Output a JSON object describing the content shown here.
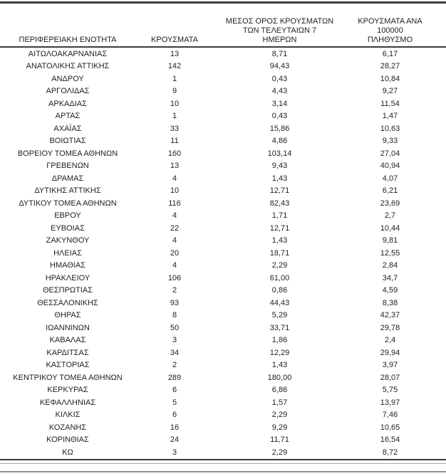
{
  "table": {
    "columns": [
      {
        "label": "ΠΕΡΙΦΕΡΕΙΑΚΗ ΕΝΟΤΗΤΑ"
      },
      {
        "label": "ΚΡΟΥΣΜΑΤΑ"
      },
      {
        "label": "ΜΕΣΟΣ ΟΡΟΣ ΚΡΟΥΣΜΑΤΩΝ\nΤΩΝ ΤΕΛΕΥΤΑΙΩΝ 7\nΗΜΕΡΩΝ"
      },
      {
        "label": "ΚΡΟΥΣΜΑΤΑ ΑΝΑ 100000\nΠΛΗΘΥΣΜΟ"
      }
    ],
    "rows": [
      {
        "region": "ΑΙΤΩΛΟΑΚΑΡΝΑΝΙΑΣ",
        "cases": "13",
        "avg7": "8,71",
        "per100k": "6,17"
      },
      {
        "region": "ΑΝΑΤΟΛΙΚΗΣ ΑΤΤΙΚΗΣ",
        "cases": "142",
        "avg7": "94,43",
        "per100k": "28,27"
      },
      {
        "region": "ΑΝΔΡΟΥ",
        "cases": "1",
        "avg7": "0,43",
        "per100k": "10,84"
      },
      {
        "region": "ΑΡΓΟΛΙΔΑΣ",
        "cases": "9",
        "avg7": "4,43",
        "per100k": "9,27"
      },
      {
        "region": "ΑΡΚΑΔΙΑΣ",
        "cases": "10",
        "avg7": "3,14",
        "per100k": "11,54"
      },
      {
        "region": "ΑΡΤΑΣ",
        "cases": "1",
        "avg7": "0,43",
        "per100k": "1,47"
      },
      {
        "region": "ΑΧΑΪΑΣ",
        "cases": "33",
        "avg7": "15,86",
        "per100k": "10,63"
      },
      {
        "region": "ΒΟΙΩΤΙΑΣ",
        "cases": "11",
        "avg7": "4,86",
        "per100k": "9,33"
      },
      {
        "region": "ΒΟΡΕΙΟΥ ΤΟΜΕΑ ΑΘΗΝΩΝ",
        "cases": "160",
        "avg7": "103,14",
        "per100k": "27,04"
      },
      {
        "region": "ΓΡΕΒΕΝΩΝ",
        "cases": "13",
        "avg7": "9,43",
        "per100k": "40,94"
      },
      {
        "region": "ΔΡΑΜΑΣ",
        "cases": "4",
        "avg7": "1,43",
        "per100k": "4,07"
      },
      {
        "region": "ΔΥΤΙΚΗΣ ΑΤΤΙΚΗΣ",
        "cases": "10",
        "avg7": "12,71",
        "per100k": "6,21"
      },
      {
        "region": "ΔΥΤΙΚΟΥ ΤΟΜΕΑ ΑΘΗΝΩΝ",
        "cases": "116",
        "avg7": "82,43",
        "per100k": "23,69"
      },
      {
        "region": "ΕΒΡΟΥ",
        "cases": "4",
        "avg7": "1,71",
        "per100k": "2,7"
      },
      {
        "region": "ΕΥΒΟΙΑΣ",
        "cases": "22",
        "avg7": "12,71",
        "per100k": "10,44"
      },
      {
        "region": "ΖΑΚΥΝΘΟΥ",
        "cases": "4",
        "avg7": "1,43",
        "per100k": "9,81"
      },
      {
        "region": "ΗΛΕΙΑΣ",
        "cases": "20",
        "avg7": "18,71",
        "per100k": "12,55"
      },
      {
        "region": "ΗΜΑΘΙΑΣ",
        "cases": "4",
        "avg7": "2,29",
        "per100k": "2,84"
      },
      {
        "region": "ΗΡΑΚΛΕΙΟΥ",
        "cases": "106",
        "avg7": "61,00",
        "per100k": "34,7"
      },
      {
        "region": "ΘΕΣΠΡΩΤΙΑΣ",
        "cases": "2",
        "avg7": "0,86",
        "per100k": "4,59"
      },
      {
        "region": "ΘΕΣΣΑΛΟΝΙΚΗΣ",
        "cases": "93",
        "avg7": "44,43",
        "per100k": "8,38"
      },
      {
        "region": "ΘΗΡΑΣ",
        "cases": "8",
        "avg7": "5,29",
        "per100k": "42,37"
      },
      {
        "region": "ΙΩΑΝΝΙΝΩΝ",
        "cases": "50",
        "avg7": "33,71",
        "per100k": "29,78"
      },
      {
        "region": "ΚΑΒΑΛΑΣ",
        "cases": "3",
        "avg7": "1,86",
        "per100k": "2,4"
      },
      {
        "region": "ΚΑΡΔΙΤΣΑΣ",
        "cases": "34",
        "avg7": "12,29",
        "per100k": "29,94"
      },
      {
        "region": "ΚΑΣΤΟΡΙΑΣ",
        "cases": "2",
        "avg7": "1,43",
        "per100k": "3,97"
      },
      {
        "region": "ΚΕΝΤΡΙΚΟΥ ΤΟΜΕΑ ΑΘΗΝΩΝ",
        "cases": "289",
        "avg7": "180,00",
        "per100k": "28,07"
      },
      {
        "region": "ΚΕΡΚΥΡΑΣ",
        "cases": "6",
        "avg7": "6,86",
        "per100k": "5,75"
      },
      {
        "region": "ΚΕΦΑΛΛΗΝΙΑΣ",
        "cases": "5",
        "avg7": "1,57",
        "per100k": "13,97"
      },
      {
        "region": "ΚΙΛΚΙΣ",
        "cases": "6",
        "avg7": "2,29",
        "per100k": "7,46"
      },
      {
        "region": "ΚΟΖΑΝΗΣ",
        "cases": "16",
        "avg7": "9,29",
        "per100k": "10,65"
      },
      {
        "region": "ΚΟΡΙΝΘΙΑΣ",
        "cases": "24",
        "avg7": "11,71",
        "per100k": "16,54"
      },
      {
        "region": "ΚΩ",
        "cases": "3",
        "avg7": "2,29",
        "per100k": "8,72"
      }
    ]
  }
}
